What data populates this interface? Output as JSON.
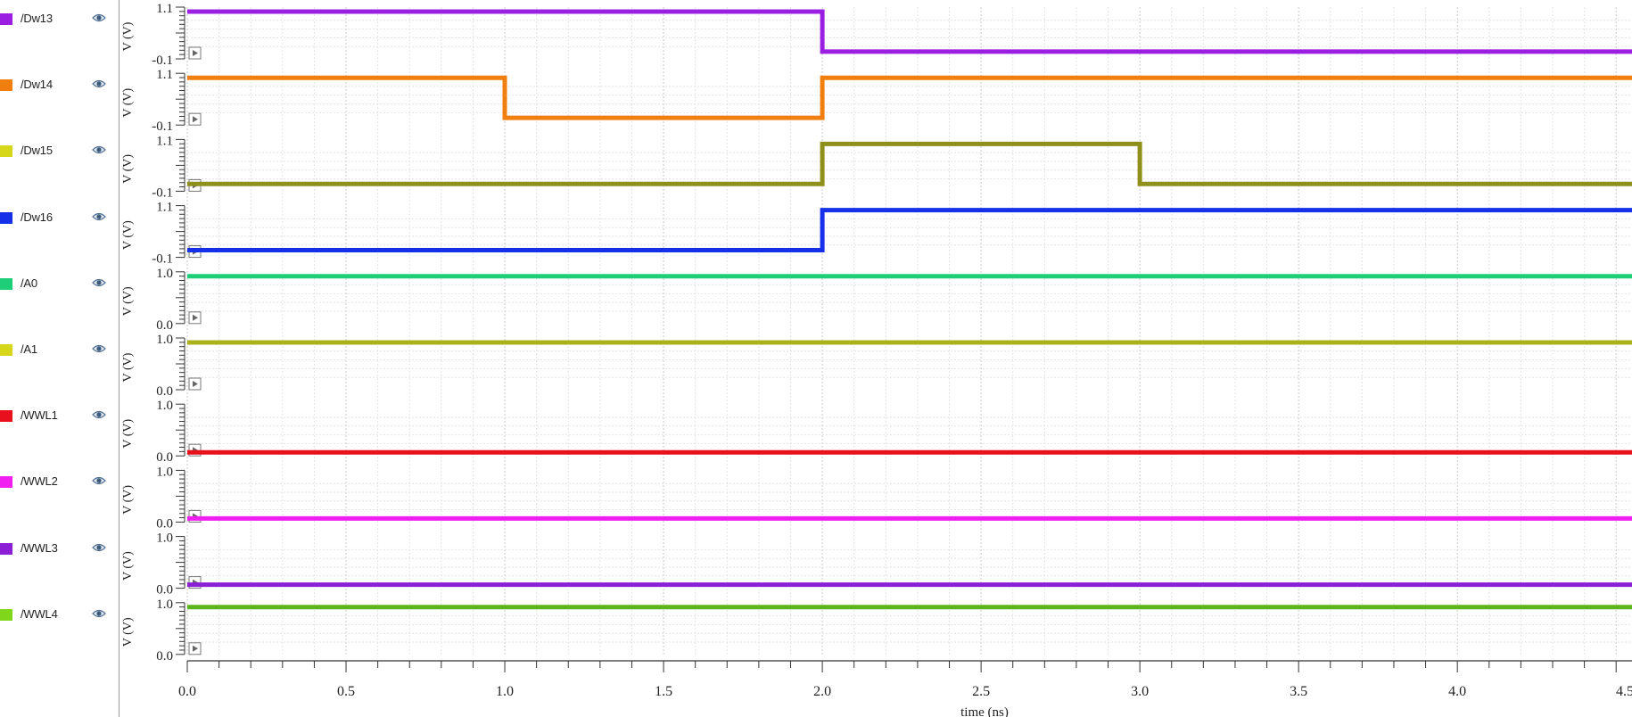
{
  "chart_data": {
    "type": "line",
    "x_range": [
      0.0,
      4.55
    ],
    "x_ticks": [
      "0.0",
      "0.5",
      "1.0",
      "1.5",
      "2.0",
      "2.5",
      "3.0",
      "3.5",
      "4.0",
      "4.5"
    ],
    "xlabel": "time (ns)",
    "ylabel": "V (V)",
    "grid": true,
    "legend_placement": "left",
    "series": [
      {
        "name": "/Dw13",
        "color": "#9a1fe0",
        "y_ticks": [
          "1.1",
          "-0.1"
        ],
        "ylim": [
          -0.1,
          1.1
        ],
        "points": [
          [
            0,
            1.1
          ],
          [
            2.0,
            1.1
          ],
          [
            2.0,
            0.0
          ],
          [
            4.55,
            0.0
          ]
        ]
      },
      {
        "name": "/Dw14",
        "color": "#f07f10",
        "y_ticks": [
          "1.1",
          "-0.1"
        ],
        "ylim": [
          -0.1,
          1.1
        ],
        "points": [
          [
            0,
            1.1
          ],
          [
            1.0,
            1.1
          ],
          [
            1.0,
            0.0
          ],
          [
            2.0,
            0.0
          ],
          [
            2.0,
            1.1
          ],
          [
            4.55,
            1.1
          ]
        ]
      },
      {
        "name": "/Dw15",
        "color": "#8f8f1c",
        "swatch": "#d6d61a",
        "y_ticks": [
          "1.1",
          "-0.1"
        ],
        "ylim": [
          -0.1,
          1.1
        ],
        "points": [
          [
            0,
            0.0
          ],
          [
            2.0,
            0.0
          ],
          [
            2.0,
            1.1
          ],
          [
            3.0,
            1.1
          ],
          [
            3.0,
            0.0
          ],
          [
            4.55,
            0.0
          ]
        ]
      },
      {
        "name": "/Dw16",
        "color": "#1530e8",
        "y_ticks": [
          "1.1",
          "-0.1"
        ],
        "ylim": [
          -0.1,
          1.1
        ],
        "points": [
          [
            0,
            0.0
          ],
          [
            2.0,
            0.0
          ],
          [
            2.0,
            1.1
          ],
          [
            4.55,
            1.1
          ]
        ]
      },
      {
        "name": "/A0",
        "color": "#1fcf77",
        "y_ticks": [
          "1.0",
          "0.0"
        ],
        "ylim": [
          0.0,
          1.0
        ],
        "points": [
          [
            0,
            1.0
          ],
          [
            4.55,
            1.0
          ]
        ]
      },
      {
        "name": "/A1",
        "color": "#aab21a",
        "swatch": "#d6d61a",
        "y_ticks": [
          "1.0",
          "0.0"
        ],
        "ylim": [
          0.0,
          1.0
        ],
        "points": [
          [
            0,
            1.0
          ],
          [
            4.55,
            1.0
          ]
        ]
      },
      {
        "name": "/WWL1",
        "color": "#e8101c",
        "y_ticks": [
          "1.0",
          "0.0"
        ],
        "ylim": [
          0.0,
          1.0
        ],
        "points": [
          [
            0,
            0.0
          ],
          [
            4.55,
            0.0
          ]
        ]
      },
      {
        "name": "/WWL2",
        "color": "#f01ef0",
        "y_ticks": [
          "1.0",
          "0.0"
        ],
        "ylim": [
          0.0,
          1.0
        ],
        "points": [
          [
            0,
            0.0
          ],
          [
            4.55,
            0.0
          ]
        ]
      },
      {
        "name": "/WWL3",
        "color": "#8a1fd6",
        "y_ticks": [
          "1.0",
          "0.0"
        ],
        "ylim": [
          0.0,
          1.0
        ],
        "points": [
          [
            0,
            0.0
          ],
          [
            4.55,
            0.0
          ]
        ]
      },
      {
        "name": "/WWL4",
        "color": "#5cb51a",
        "swatch": "#7fd61a",
        "y_ticks": [
          "1.0",
          "0.0"
        ],
        "ylim": [
          0.0,
          1.0
        ],
        "points": [
          [
            0,
            1.0
          ],
          [
            4.55,
            1.0
          ]
        ]
      }
    ]
  }
}
